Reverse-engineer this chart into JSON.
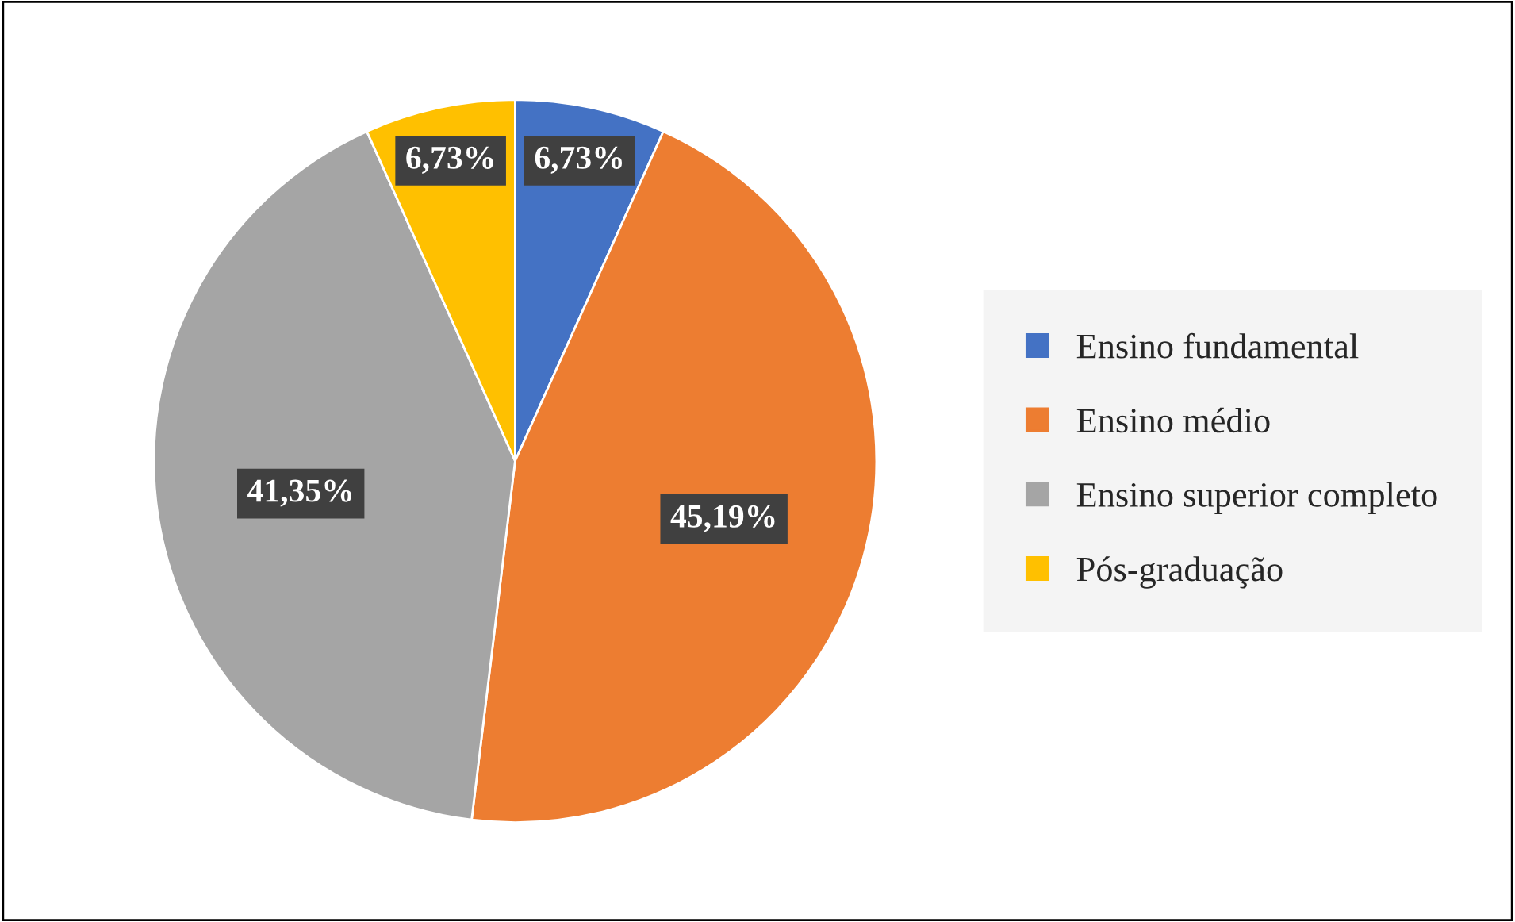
{
  "chart_data": {
    "type": "pie",
    "categories": [
      "Ensino fundamental",
      "Ensino médio",
      "Ensino superior completo",
      "Pós-graduação"
    ],
    "values": [
      6.73,
      45.19,
      41.35,
      6.73
    ],
    "colors": [
      "#4472c4",
      "#ed7d31",
      "#a5a5a5",
      "#ffc000"
    ],
    "value_labels": [
      "6,73%",
      "45,19%",
      "41,35%",
      "6,73%"
    ],
    "legend": "right"
  }
}
